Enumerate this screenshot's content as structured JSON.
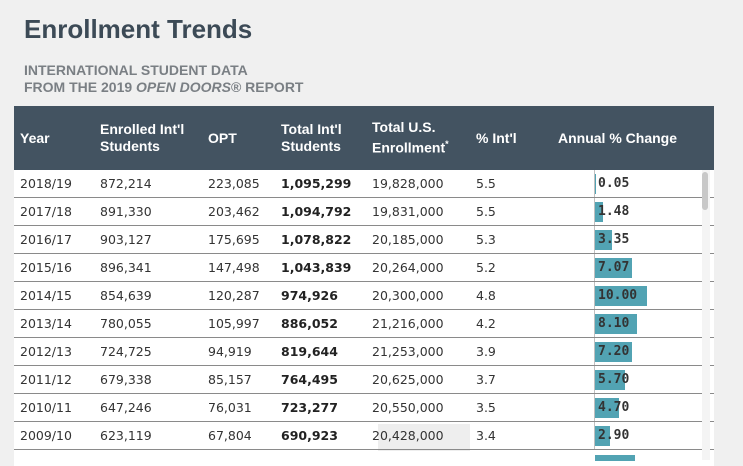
{
  "header": {
    "title": "Enrollment Trends",
    "subtitle_line1": "INTERNATIONAL STUDENT DATA",
    "subtitle_line2_prefix": "FROM THE 2019 ",
    "subtitle_line2_italic": "OPEN DOORS",
    "subtitle_line2_suffix": "® REPORT"
  },
  "table": {
    "columns": {
      "year": "Year",
      "enrolled_l1": "Enrolled Int'l",
      "enrolled_l2": "Students",
      "opt": "OPT",
      "total_intl_l1": "Total Int'l",
      "total_intl_l2": "Students",
      "total_us_l1": "Total U.S.",
      "total_us_l2": "Enrollment",
      "total_us_mark": "*",
      "pct_intl": "% Int'l",
      "annual_change": "Annual % Change"
    },
    "rows": [
      {
        "year": "2018/19",
        "enrolled": "872,214",
        "opt": "223,085",
        "total_intl": "1,095,299",
        "total_us": "19,828,000",
        "pct_intl": "5.5",
        "change": "0.05",
        "change_value": 0.05
      },
      {
        "year": "2017/18",
        "enrolled": "891,330",
        "opt": "203,462",
        "total_intl": "1,094,792",
        "total_us": "19,831,000",
        "pct_intl": "5.5",
        "change": "1.48",
        "change_value": 1.48
      },
      {
        "year": "2016/17",
        "enrolled": "903,127",
        "opt": "175,695",
        "total_intl": "1,078,822",
        "total_us": "20,185,000",
        "pct_intl": "5.3",
        "change": "3.35",
        "change_value": 3.35
      },
      {
        "year": "2015/16",
        "enrolled": "896,341",
        "opt": "147,498",
        "total_intl": "1,043,839",
        "total_us": "20,264,000",
        "pct_intl": "5.2",
        "change": "7.07",
        "change_value": 7.07
      },
      {
        "year": "2014/15",
        "enrolled": "854,639",
        "opt": "120,287",
        "total_intl": "974,926",
        "total_us": "20,300,000",
        "pct_intl": "4.8",
        "change": "10.00",
        "change_value": 10.0
      },
      {
        "year": "2013/14",
        "enrolled": "780,055",
        "opt": "105,997",
        "total_intl": "886,052",
        "total_us": "21,216,000",
        "pct_intl": "4.2",
        "change": "8.10",
        "change_value": 8.1
      },
      {
        "year": "2012/13",
        "enrolled": "724,725",
        "opt": "94,919",
        "total_intl": "819,644",
        "total_us": "21,253,000",
        "pct_intl": "3.9",
        "change": "7.20",
        "change_value": 7.2
      },
      {
        "year": "2011/12",
        "enrolled": "679,338",
        "opt": "85,157",
        "total_intl": "764,495",
        "total_us": "20,625,000",
        "pct_intl": "3.7",
        "change": "5.70",
        "change_value": 5.7
      },
      {
        "year": "2010/11",
        "enrolled": "647,246",
        "opt": "76,031",
        "total_intl": "723,277",
        "total_us": "20,550,000",
        "pct_intl": "3.5",
        "change": "4.70",
        "change_value": 4.7
      },
      {
        "year": "2009/10",
        "enrolled": "623,119",
        "opt": "67,804",
        "total_intl": "690,923",
        "total_us": "20,428,000",
        "pct_intl": "3.4",
        "change": "2.90",
        "change_value": 2.9
      }
    ]
  },
  "colors": {
    "header_bg": "#435361",
    "bar": "#52a3b3",
    "title": "#3c4a56"
  }
}
